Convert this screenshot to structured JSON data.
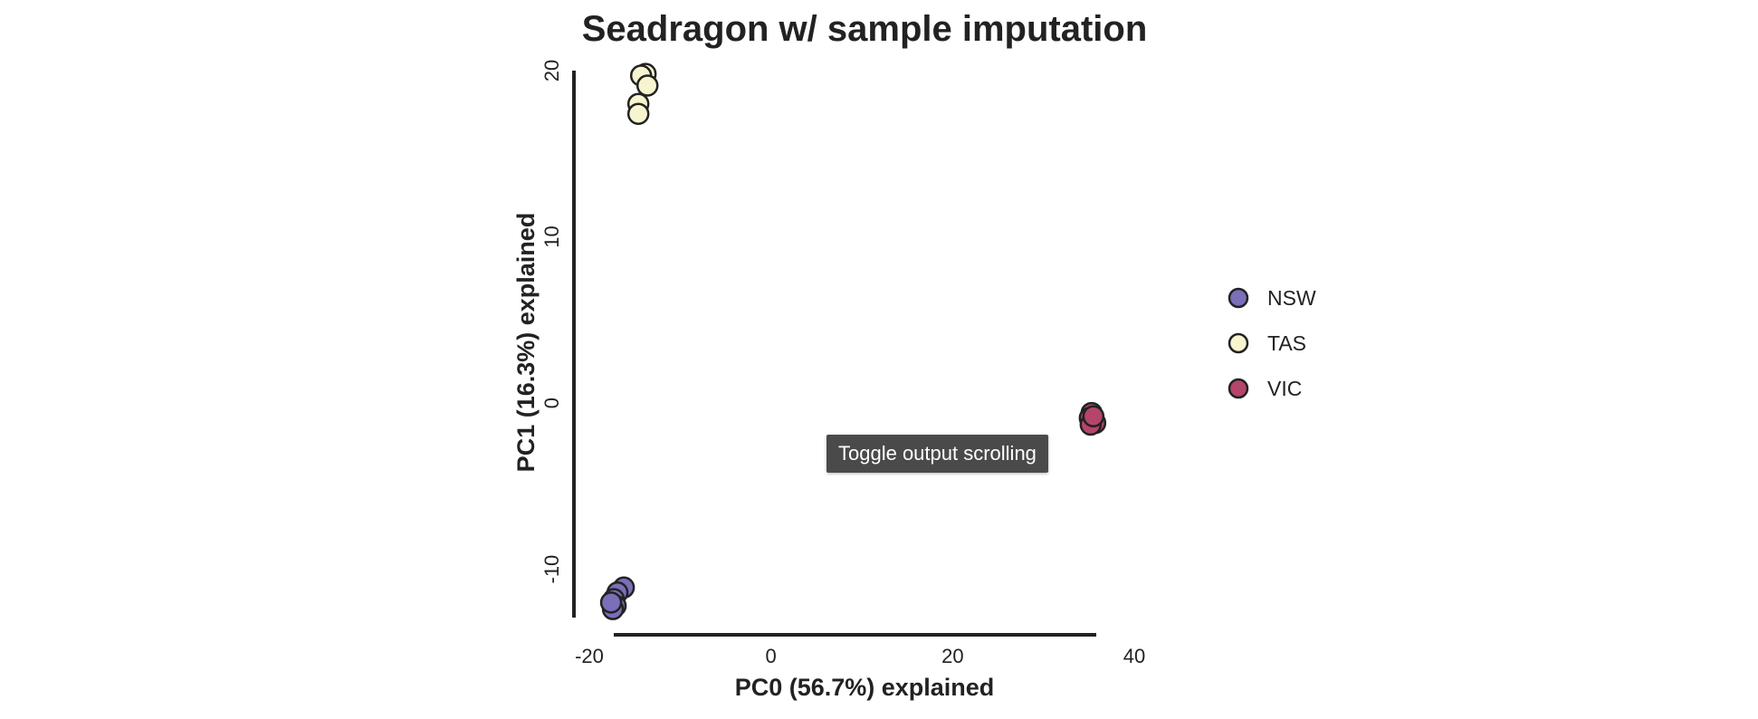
{
  "chart_data": {
    "type": "scatter",
    "title": "Seadragon w/ sample imputation",
    "xlabel": "PC0 (56.7%) explained",
    "ylabel": "PC1 (16.3%) explained",
    "xlim": [
      -20,
      40
    ],
    "ylim": [
      -12.8,
      20
    ],
    "xticks": [
      -20,
      0,
      20,
      40
    ],
    "yticks": [
      -10,
      0,
      10,
      20
    ],
    "xtick_labels": [
      "-20",
      "0",
      "20",
      "40"
    ],
    "ytick_labels": [
      "-10",
      "0",
      "10",
      "20"
    ],
    "grid": false,
    "legend_position": "right",
    "series": [
      {
        "name": "NSW",
        "color": "#7a6fb8",
        "points": [
          {
            "x": -16.2,
            "y": -11.1
          },
          {
            "x": -16.9,
            "y": -11.4
          },
          {
            "x": -17.3,
            "y": -11.8
          },
          {
            "x": -17.1,
            "y": -12.2
          },
          {
            "x": -17.4,
            "y": -12.4
          },
          {
            "x": -17.6,
            "y": -12.0
          }
        ]
      },
      {
        "name": "TAS",
        "color": "#f7f5cf",
        "points": [
          {
            "x": -13.8,
            "y": 19.8
          },
          {
            "x": -14.3,
            "y": 19.7
          },
          {
            "x": -13.6,
            "y": 19.1
          },
          {
            "x": -14.6,
            "y": 18.0
          },
          {
            "x": -14.6,
            "y": 17.4
          }
        ]
      },
      {
        "name": "VIC",
        "color": "#b5456a",
        "points": [
          {
            "x": 35.3,
            "y": -0.6
          },
          {
            "x": 35.1,
            "y": -0.9
          },
          {
            "x": 35.7,
            "y": -1.2
          },
          {
            "x": 35.2,
            "y": -1.3
          },
          {
            "x": 35.5,
            "y": -0.8
          }
        ]
      }
    ]
  },
  "tooltip": {
    "text": "Toggle output scrolling"
  }
}
